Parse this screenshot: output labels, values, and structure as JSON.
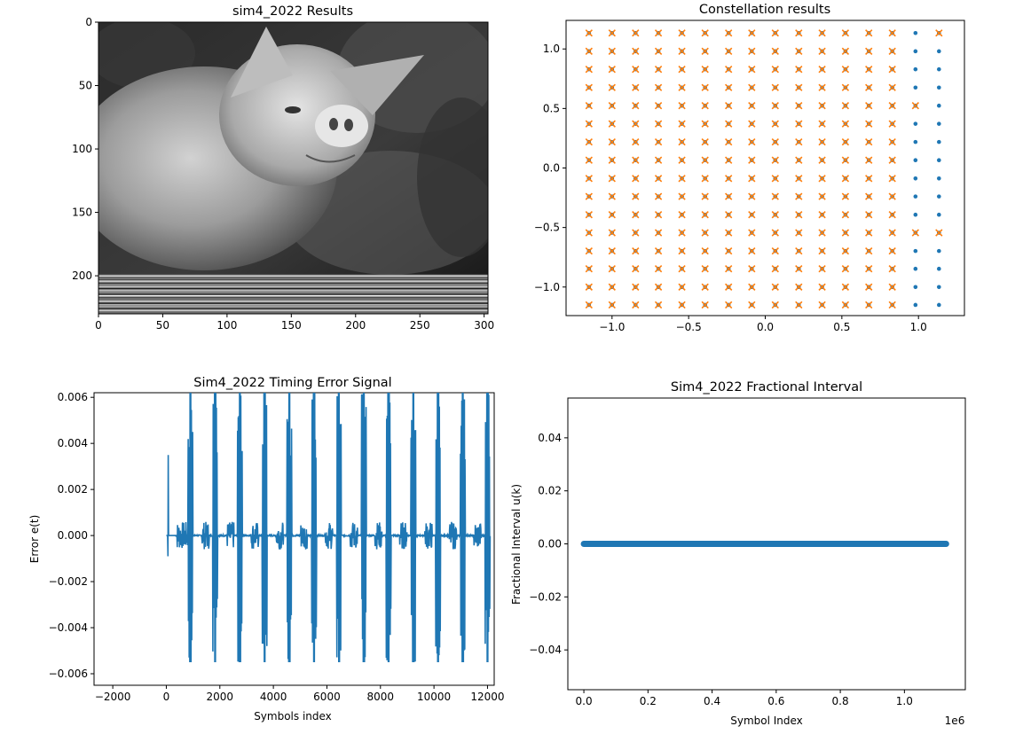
{
  "chart_data": [
    {
      "type": "image",
      "title": "sim4_2022 Results",
      "xlim": [
        0,
        303
      ],
      "ylim": [
        230,
        0
      ],
      "xticks": [
        0,
        50,
        100,
        150,
        200,
        250,
        300
      ],
      "yticks": [
        0,
        50,
        100,
        150,
        200
      ],
      "image_subject": "grayscale photo of a pig",
      "photo_rows": [
        0,
        199
      ],
      "stripe_rows": [
        199,
        230
      ],
      "colors": {
        "photo_dark": "#1a1a1a",
        "photo_mid": "#6e6e6e",
        "photo_light": "#d9d9d9"
      }
    },
    {
      "type": "scatter",
      "title": "Constellation results",
      "xlim": [
        -1.3,
        1.3
      ],
      "ylim": [
        -1.24,
        1.24
      ],
      "xticks": [
        -1.0,
        -0.5,
        0.0,
        0.5,
        1.0
      ],
      "xtick_labels": [
        "−1.0",
        "−0.5",
        "0.0",
        "0.5",
        "1.0"
      ],
      "yticks": [
        -1.0,
        -0.5,
        0.0,
        0.5,
        1.0
      ],
      "ytick_labels": [
        "−1.0",
        "−0.5",
        "0.0",
        "0.5",
        "1.0"
      ],
      "grid_levels": [
        -1.1504,
        -1.0,
        -0.8467,
        -0.6973,
        -0.5439,
        -0.3926,
        -0.2393,
        -0.0879,
        0.0654,
        0.2188,
        0.3711,
        0.5234,
        0.6758,
        0.8291,
        0.9805,
        1.1338
      ],
      "series": [
        {
          "marker": "dot",
          "color": "#1f77b4",
          "points": "all 16x16 grid points"
        },
        {
          "marker": "x",
          "color": "#ff7f0e",
          "points": "grid points with x < 0.9, plus (0.9805,-0.5439), (0.9805,0.5234), (1.1338,-0.5439), (1.1338,1.1338)"
        }
      ],
      "extra_x_points": [
        {
          "x": 0.9805,
          "y": -0.5439
        },
        {
          "x": 0.9805,
          "y": 0.5234
        },
        {
          "x": 1.1338,
          "y": -0.5439
        },
        {
          "x": 1.1338,
          "y": 1.1338
        }
      ]
    },
    {
      "type": "line",
      "title": "Sim4_2022 Timing Error Signal",
      "xlabel": "Symbols index",
      "ylabel": "Error e(t)",
      "xlim": [
        -2700,
        12250
      ],
      "ylim": [
        -0.0065,
        0.0062
      ],
      "xticks": [
        -2000,
        0,
        2000,
        4000,
        6000,
        8000,
        10000,
        12000
      ],
      "xtick_labels": [
        "−2000",
        "0",
        "2000",
        "4000",
        "6000",
        "8000",
        "10000",
        "12000"
      ],
      "yticks": [
        -0.006,
        -0.004,
        -0.002,
        0.0,
        0.002,
        0.004,
        0.006
      ],
      "ytick_labels": [
        "−0.006",
        "−0.004",
        "−0.002",
        "0.000",
        "0.002",
        "0.004",
        "0.006"
      ],
      "color": "#1f77b4",
      "initial_spike": {
        "x": 60,
        "max": 0.0035,
        "min": -0.0009
      },
      "burst_start_x": 900,
      "burst_period_x": 925,
      "burst_count": 13,
      "burst_max": 0.0062,
      "burst_min": -0.0055,
      "small_activity_amp": 0.0006,
      "signal_end_x": 12100
    },
    {
      "type": "line",
      "title": "Sim4_2022 Fractional Interval",
      "xlabel": "Symbol Index",
      "ylabel": "Fractional Interval u(k)",
      "xlim": [
        -0.05,
        1.19
      ],
      "ylim": [
        -0.055,
        0.055
      ],
      "xticks": [
        0.0,
        0.2,
        0.4,
        0.6,
        0.8,
        1.0
      ],
      "xtick_labels": [
        "0.0",
        "0.2",
        "0.4",
        "0.6",
        "0.8",
        "1.0"
      ],
      "yticks": [
        -0.04,
        -0.02,
        0.0,
        0.02,
        0.04
      ],
      "ytick_labels": [
        "−0.04",
        "−0.02",
        "0.00",
        "0.02",
        "0.04"
      ],
      "offset_label": "1e6",
      "color": "#1f77b4",
      "x": [
        0.0,
        1.13
      ],
      "values": [
        0.0,
        0.0
      ]
    }
  ]
}
